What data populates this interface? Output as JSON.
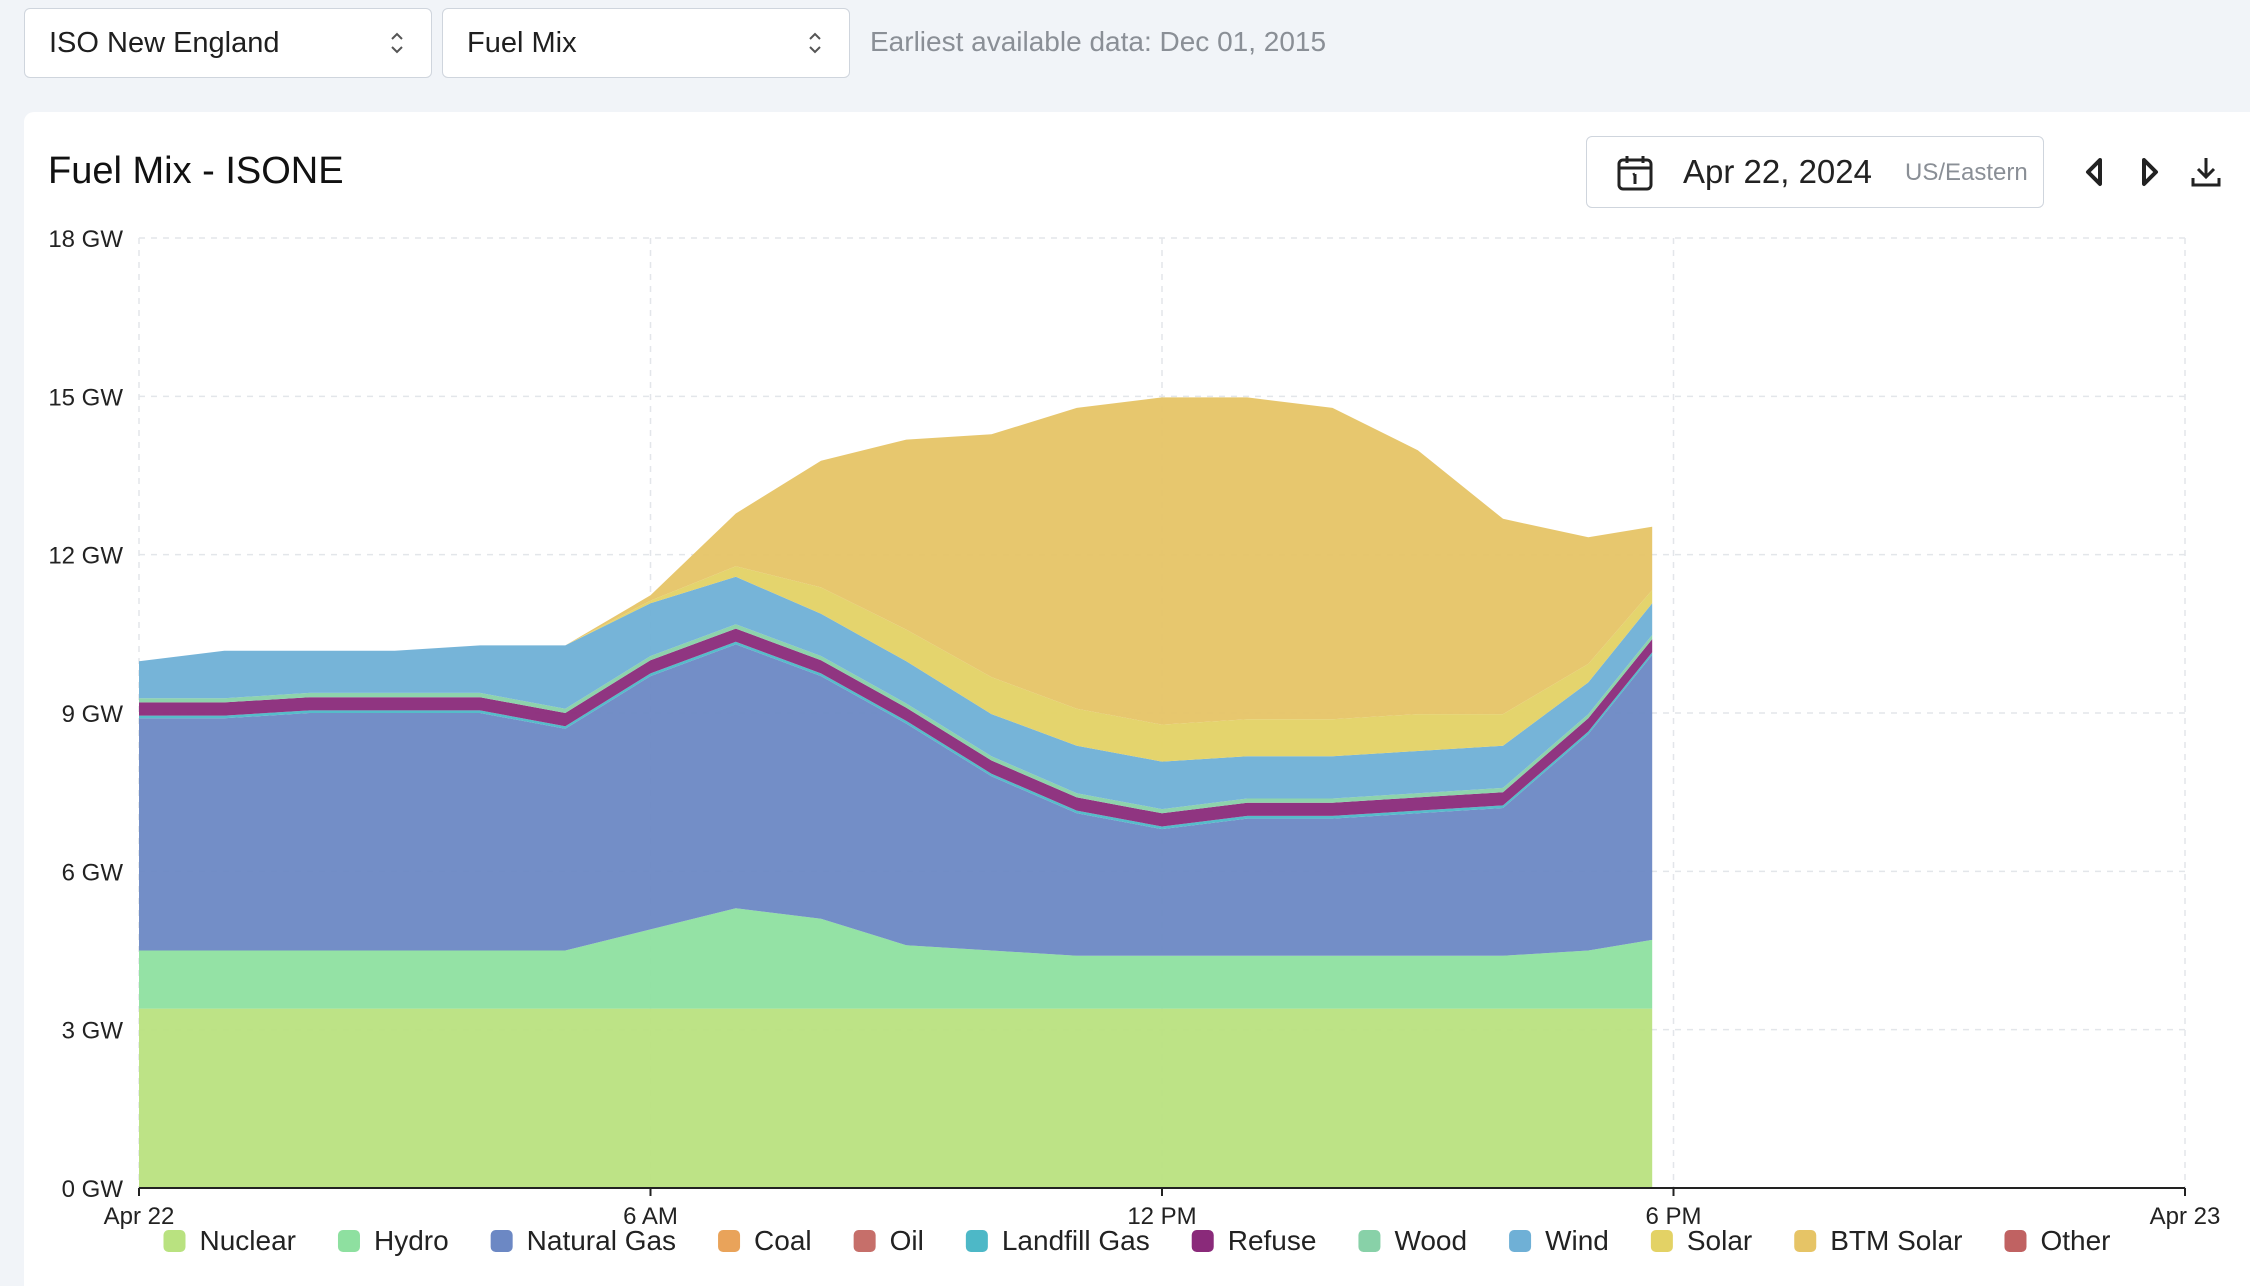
{
  "toolbar": {
    "region": "ISO New England",
    "dataset": "Fuel Mix",
    "earliest": "Earliest available data: Dec 01, 2015"
  },
  "panel": {
    "title": "Fuel Mix - ISONE",
    "date": "Apr 22, 2024",
    "timezone": "US/Eastern"
  },
  "icons": [
    "calendar-icon",
    "chevron-left-icon",
    "chevron-right-icon",
    "download-icon",
    "updown-chevron-icon"
  ],
  "chart_data": {
    "type": "area",
    "stacked": true,
    "title": "Fuel Mix - ISONE",
    "y_unit": "GW",
    "ylim": [
      0,
      18
    ],
    "y_ticks": [
      "0 GW",
      "3 GW",
      "6 GW",
      "9 GW",
      "12 GW",
      "15 GW",
      "18 GW"
    ],
    "x_ticks": [
      "Apr 22",
      "6 AM",
      "12 PM",
      "6 PM",
      "Apr 23"
    ],
    "x_range_hours": [
      0,
      24
    ],
    "grid": true,
    "legend_position": "bottom",
    "x_hours": [
      0,
      1,
      2,
      3,
      4,
      5,
      6,
      7,
      8,
      9,
      10,
      11,
      12,
      13,
      14,
      15,
      16,
      17,
      17.75
    ],
    "series": [
      {
        "name": "Nuclear",
        "color": "#b9e280",
        "values": [
          3.4,
          3.4,
          3.4,
          3.4,
          3.4,
          3.4,
          3.4,
          3.4,
          3.4,
          3.4,
          3.4,
          3.4,
          3.4,
          3.4,
          3.4,
          3.4,
          3.4,
          3.4,
          3.4
        ]
      },
      {
        "name": "Hydro",
        "color": "#8ee0a0",
        "values": [
          1.1,
          1.1,
          1.1,
          1.1,
          1.1,
          1.1,
          1.5,
          1.9,
          1.7,
          1.2,
          1.1,
          1.0,
          1.0,
          1.0,
          1.0,
          1.0,
          1.0,
          1.1,
          1.3
        ]
      },
      {
        "name": "Natural Gas",
        "color": "#6c88c4",
        "values": [
          4.4,
          4.4,
          4.5,
          4.5,
          4.5,
          4.2,
          4.8,
          5.0,
          4.6,
          4.2,
          3.3,
          2.7,
          2.4,
          2.6,
          2.6,
          2.7,
          2.8,
          4.1,
          5.4
        ]
      },
      {
        "name": "Coal",
        "color": "#e9a35a",
        "values": [
          0,
          0,
          0,
          0,
          0,
          0,
          0,
          0,
          0,
          0,
          0,
          0,
          0,
          0,
          0,
          0,
          0,
          0,
          0
        ]
      },
      {
        "name": "Oil",
        "color": "#c66f6a",
        "values": [
          0,
          0,
          0,
          0,
          0,
          0,
          0,
          0,
          0,
          0,
          0,
          0,
          0,
          0,
          0,
          0,
          0,
          0,
          0
        ]
      },
      {
        "name": "Landfill Gas",
        "color": "#4db8c7",
        "values": [
          0.05,
          0.05,
          0.05,
          0.05,
          0.05,
          0.05,
          0.05,
          0.05,
          0.05,
          0.05,
          0.05,
          0.05,
          0.05,
          0.05,
          0.05,
          0.05,
          0.05,
          0.05,
          0.05
        ]
      },
      {
        "name": "Refuse",
        "color": "#8a2a7a",
        "values": [
          0.25,
          0.25,
          0.25,
          0.25,
          0.25,
          0.25,
          0.25,
          0.25,
          0.25,
          0.25,
          0.25,
          0.25,
          0.25,
          0.25,
          0.25,
          0.25,
          0.25,
          0.25,
          0.25
        ]
      },
      {
        "name": "Wood",
        "color": "#88d1a8",
        "values": [
          0.08,
          0.08,
          0.08,
          0.08,
          0.08,
          0.08,
          0.08,
          0.08,
          0.08,
          0.08,
          0.08,
          0.08,
          0.08,
          0.08,
          0.08,
          0.08,
          0.08,
          0.08,
          0.08
        ]
      },
      {
        "name": "Wind",
        "color": "#6fb0d6",
        "values": [
          0.7,
          0.9,
          0.8,
          0.8,
          0.9,
          1.2,
          1.0,
          0.9,
          0.8,
          0.8,
          0.8,
          0.9,
          0.9,
          0.8,
          0.8,
          0.8,
          0.8,
          0.6,
          0.6
        ]
      },
      {
        "name": "Solar",
        "color": "#e3d265",
        "values": [
          0,
          0,
          0,
          0,
          0,
          0,
          0.05,
          0.2,
          0.5,
          0.6,
          0.7,
          0.7,
          0.7,
          0.7,
          0.7,
          0.7,
          0.6,
          0.35,
          0.25
        ]
      },
      {
        "name": "BTM Solar",
        "color": "#e6c466",
        "values": [
          0,
          0,
          0,
          0,
          0,
          0,
          0.1,
          1.0,
          2.4,
          3.6,
          4.6,
          5.7,
          6.2,
          6.1,
          5.9,
          5.0,
          3.7,
          2.4,
          1.2
        ]
      },
      {
        "name": "Other",
        "color": "#c06262",
        "values": [
          0,
          0,
          0,
          0,
          0,
          0,
          0,
          0,
          0,
          0,
          0,
          0,
          0,
          0,
          0,
          0,
          0,
          0,
          0
        ]
      }
    ]
  }
}
